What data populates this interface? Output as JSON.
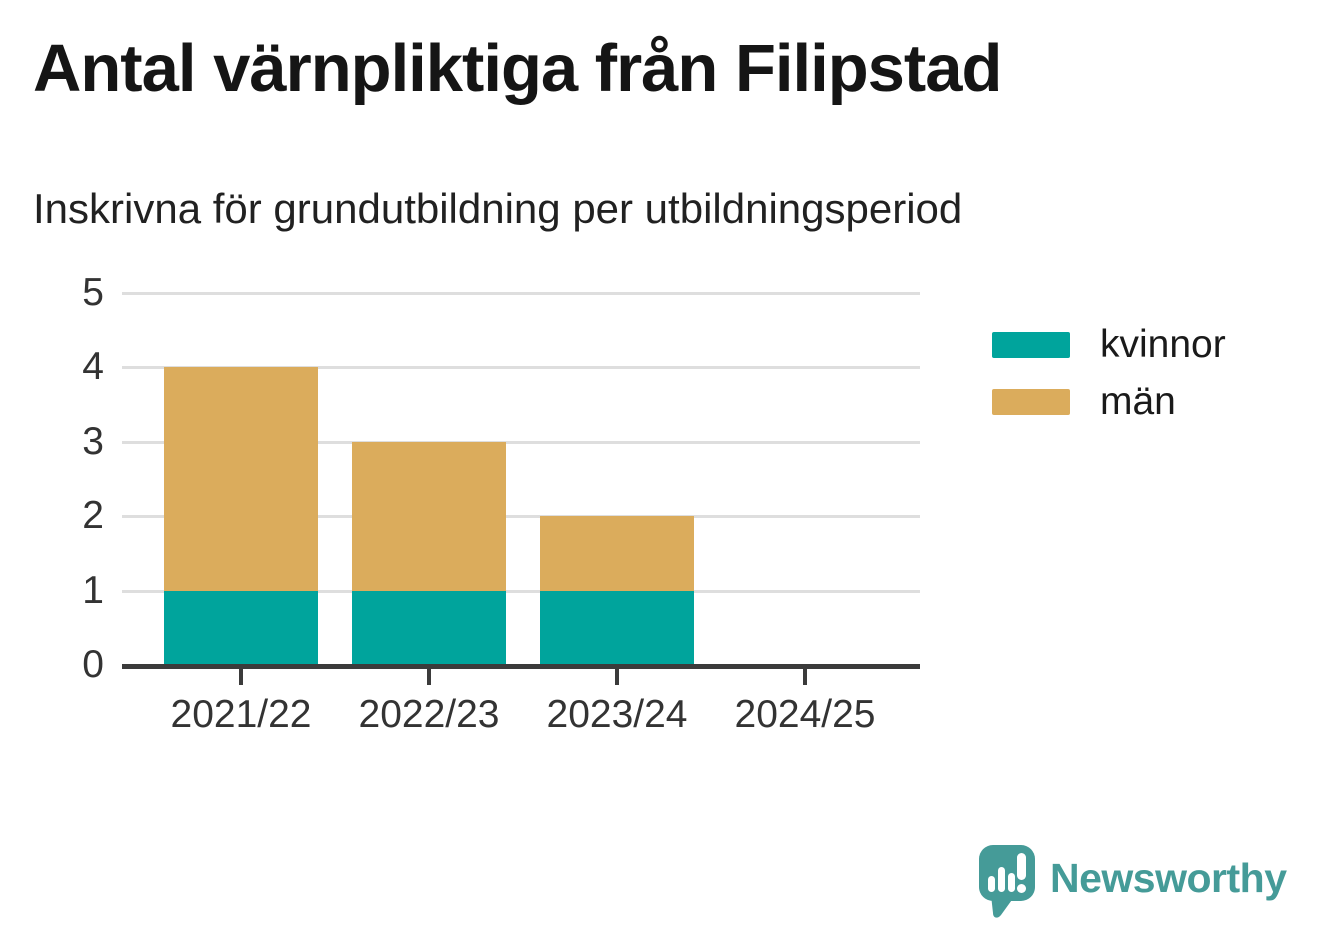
{
  "header": {
    "title": "Antal värnpliktiga från Filipstad",
    "subtitle": "Inskrivna för grundutbildning per utbildningsperiod"
  },
  "chart_data": {
    "type": "bar",
    "stacked": true,
    "title": "Antal värnpliktiga från Filipstad",
    "subtitle": "Inskrivna för grundutbildning per utbildningsperiod",
    "categories": [
      "2021/22",
      "2022/23",
      "2023/24",
      "2024/25"
    ],
    "series": [
      {
        "name": "kvinnor",
        "color": "#00a49c",
        "values": [
          1,
          1,
          1,
          0
        ]
      },
      {
        "name": "män",
        "color": "#dbac5c",
        "values": [
          3,
          2,
          1,
          0
        ]
      }
    ],
    "totals": [
      4,
      3,
      2,
      0
    ],
    "xlabel": "",
    "ylabel": "",
    "ylim": [
      0,
      5
    ],
    "yticks": [
      0,
      1,
      2,
      3,
      4,
      5
    ],
    "grid": true,
    "legend_position": "right"
  },
  "branding": {
    "logo_text": "Newsworthy"
  },
  "colors": {
    "kvinnor": "#00a49c",
    "man": "#dbac5c",
    "axis": "#3b3b3b",
    "grid": "#dedede",
    "logo": "#459b98",
    "title_text": "#151515",
    "tick_text": "#333333"
  }
}
